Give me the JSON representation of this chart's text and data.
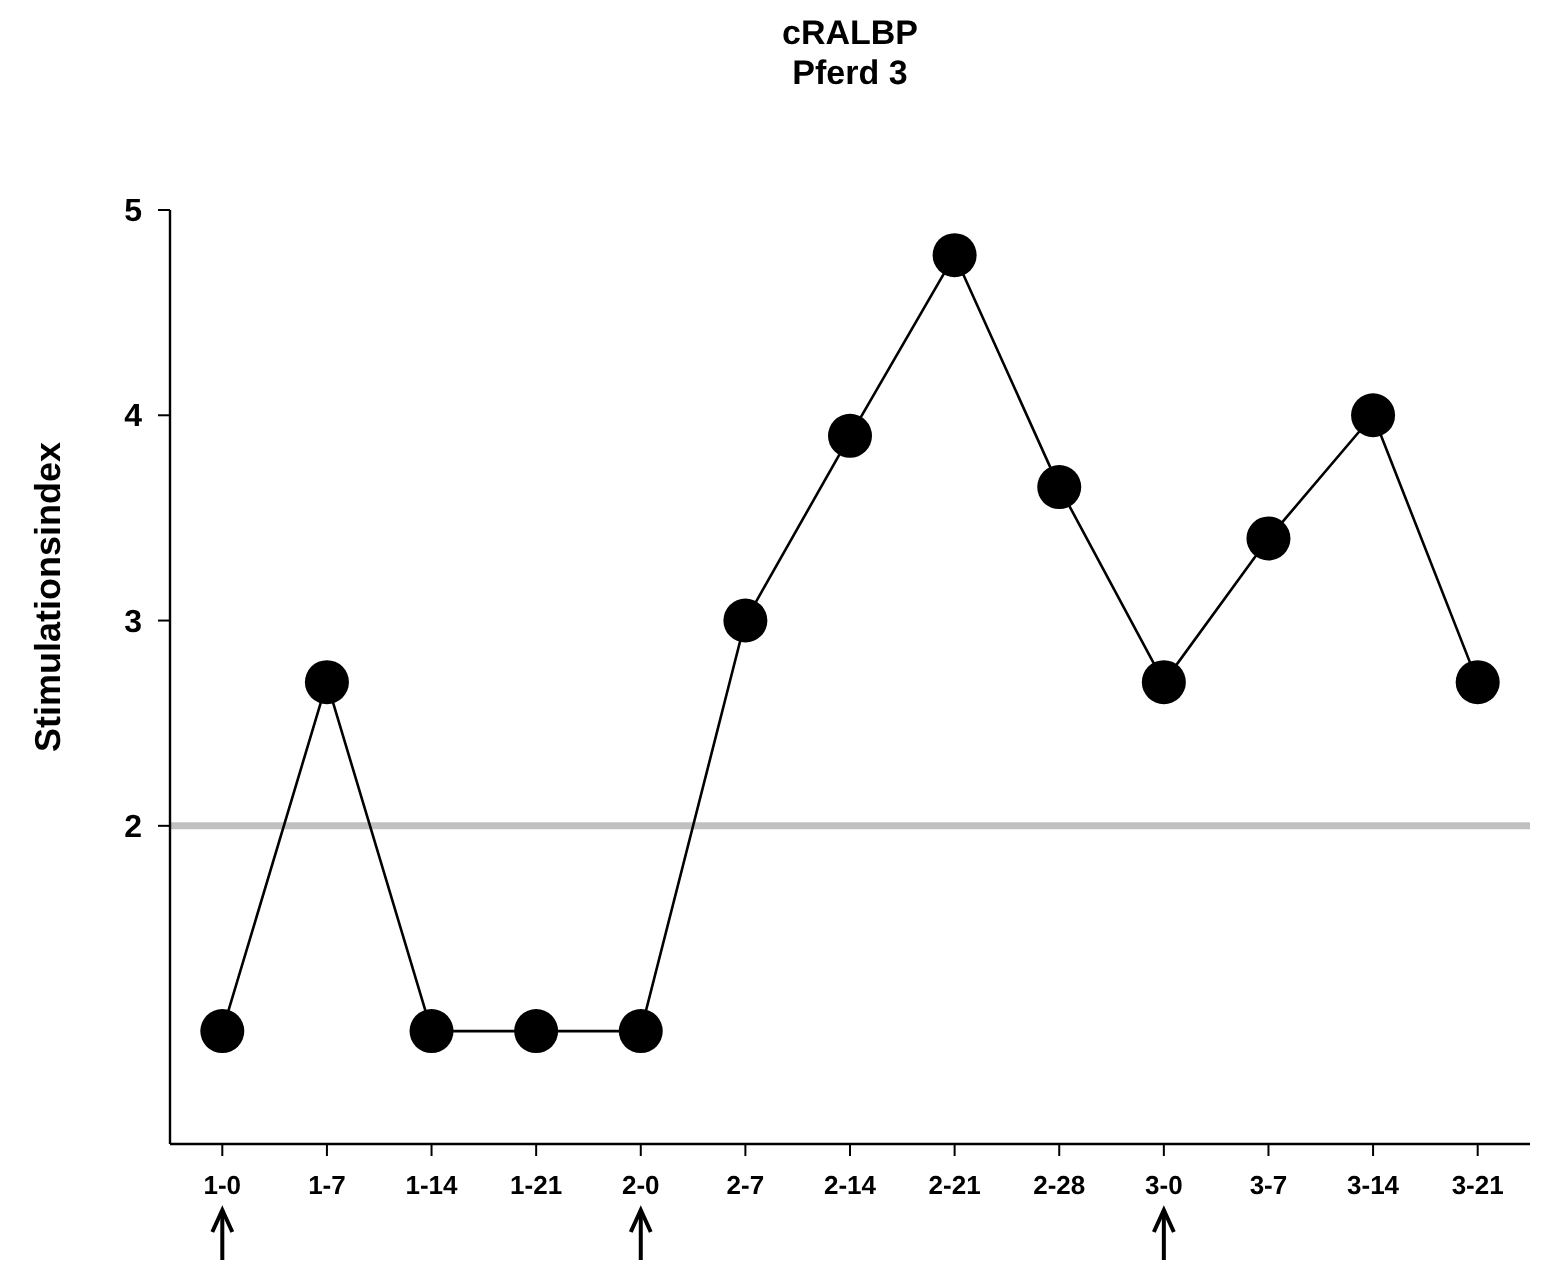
{
  "chart_data": {
    "type": "line",
    "title": "cRALBP",
    "subtitle": "Pferd 3",
    "ylabel": "Stimulationsindex",
    "categories": [
      "1-0",
      "1-7",
      "1-14",
      "1-21",
      "2-0",
      "2-7",
      "2-14",
      "2-21",
      "2-28",
      "3-0",
      "3-7",
      "3-14",
      "3-21"
    ],
    "series": [
      {
        "color": "#000000",
        "values": [
          1.0,
          2.7,
          1.0,
          1.0,
          1.0,
          3.0,
          3.9,
          4.78,
          3.65,
          2.7,
          3.4,
          4.0,
          2.7
        ]
      }
    ],
    "ylim": [
      0.45,
      5
    ],
    "yticks": [
      2,
      3,
      4,
      5
    ],
    "grid": false,
    "marker": "circle",
    "line_style": "solid",
    "ref_lines": [
      {
        "axis": "y",
        "value": 2,
        "color": "#c0c0c0"
      }
    ]
  }
}
